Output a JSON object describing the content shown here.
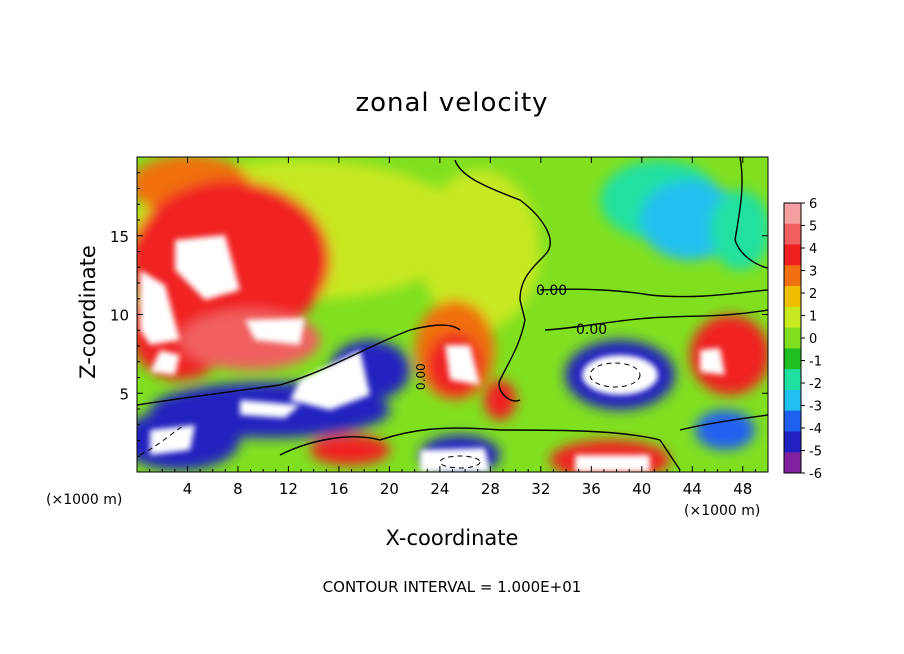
{
  "chart_data": {
    "type": "heatmap",
    "title": "zonal velocity",
    "xlabel": "X-coordinate",
    "ylabel": "Z-coordinate",
    "x_unit": "(×1000 m)",
    "y_unit": "(×1000 m)",
    "footer": "CONTOUR INTERVAL = 1.000E+01",
    "xlim": [
      0,
      50
    ],
    "ylim": [
      0,
      20
    ],
    "x_ticks": [
      4,
      8,
      12,
      16,
      20,
      24,
      28,
      32,
      36,
      40,
      44,
      48
    ],
    "y_ticks": [
      5,
      10,
      15
    ],
    "colorbar": {
      "levels": [
        6,
        5,
        4,
        3,
        2,
        1,
        0,
        -1,
        -2,
        -3,
        -4,
        -5,
        -6
      ],
      "colors": [
        "#f4a0a0",
        "#f06060",
        "#f02020",
        "#f07010",
        "#f0c000",
        "#c8e820",
        "#80e020",
        "#20c020",
        "#20e0a0",
        "#20c0f0",
        "#2060f0",
        "#2020c0",
        "#8020a0"
      ]
    },
    "contour_labels": [
      "0.00",
      "0.00",
      "0.00"
    ]
  }
}
